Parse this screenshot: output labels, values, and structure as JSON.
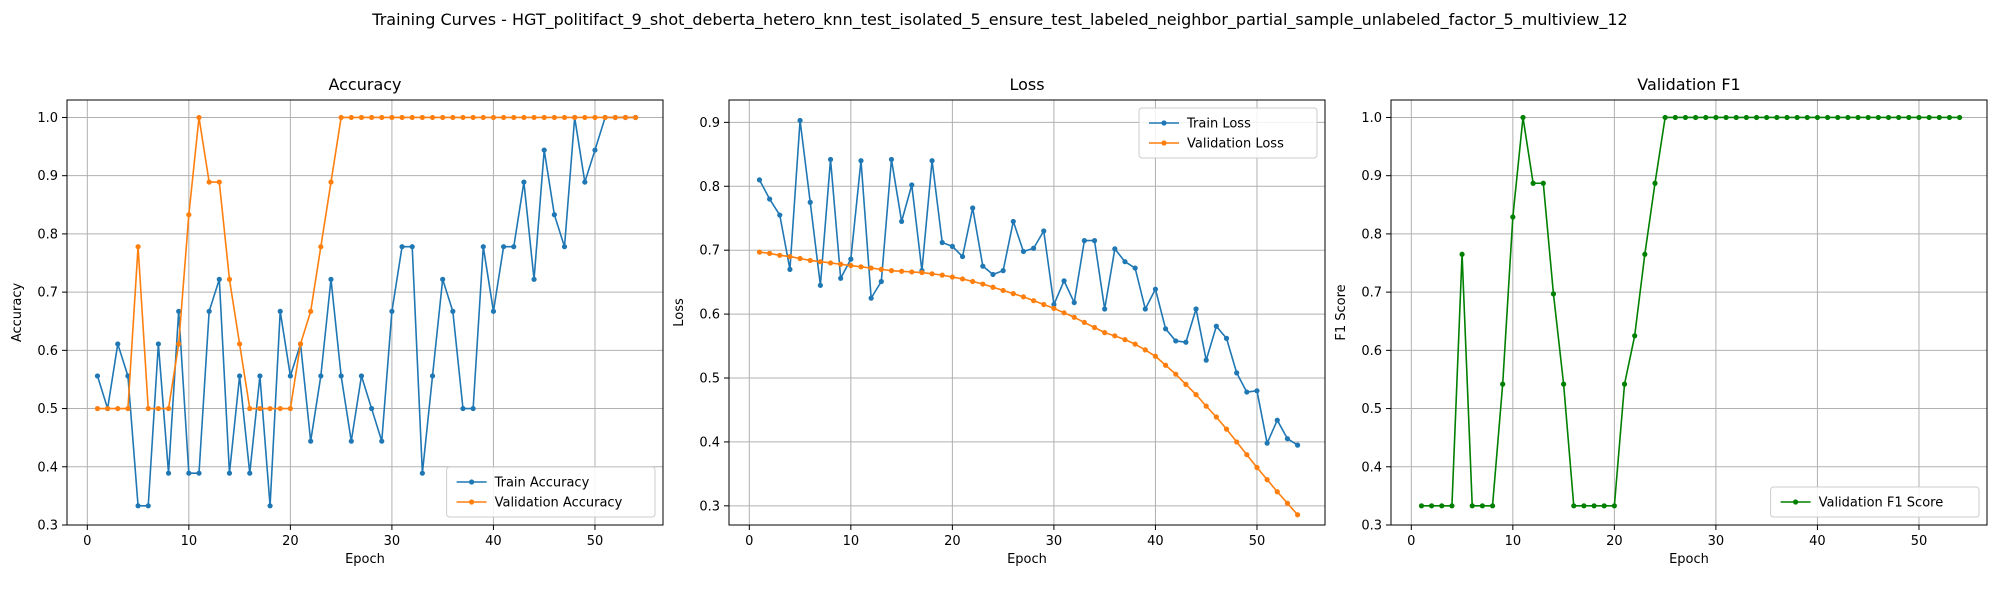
{
  "figure": {
    "suptitle": "Training Curves - HGT_politifact_9_shot_deberta_hetero_knn_test_isolated_5_ensure_test_labeled_neighbor_partial_sample_unlabeled_factor_5_multiview_12"
  },
  "chart_data": [
    {
      "type": "line",
      "title": "Accuracy",
      "xlabel": "Epoch",
      "ylabel": "Accuracy",
      "xlim": [
        -2,
        56.7
      ],
      "ylim": [
        0.3,
        1.03
      ],
      "xticks": [
        0,
        10,
        20,
        30,
        40,
        50
      ],
      "yticks": [
        0.3,
        0.4,
        0.5,
        0.6,
        0.7,
        0.8,
        0.9,
        1.0
      ],
      "grid": true,
      "legend_position": "lower-right",
      "x": [
        1,
        2,
        3,
        4,
        5,
        6,
        7,
        8,
        9,
        10,
        11,
        12,
        13,
        14,
        15,
        16,
        17,
        18,
        19,
        20,
        21,
        22,
        23,
        24,
        25,
        26,
        27,
        28,
        29,
        30,
        31,
        32,
        33,
        34,
        35,
        36,
        37,
        38,
        39,
        40,
        41,
        42,
        43,
        44,
        45,
        46,
        47,
        48,
        49,
        50,
        51,
        52,
        53,
        54
      ],
      "series": [
        {
          "name": "Train Accuracy",
          "color": "#1f77b4",
          "values": [
            0.556,
            0.5,
            0.611,
            0.556,
            0.333,
            0.333,
            0.611,
            0.389,
            0.667,
            0.389,
            0.389,
            0.667,
            0.722,
            0.389,
            0.556,
            0.389,
            0.556,
            0.333,
            0.667,
            0.556,
            0.611,
            0.444,
            0.556,
            0.722,
            0.556,
            0.444,
            0.556,
            0.5,
            0.444,
            0.667,
            0.778,
            0.778,
            0.389,
            0.556,
            0.722,
            0.667,
            0.5,
            0.5,
            0.778,
            0.667,
            0.778,
            0.778,
            0.889,
            0.722,
            0.944,
            0.833,
            0.778,
            1.0,
            0.889,
            0.944,
            1.0,
            1.0,
            1.0,
            1.0
          ]
        },
        {
          "name": "Validation Accuracy",
          "color": "#ff7f0e",
          "values": [
            0.5,
            0.5,
            0.5,
            0.5,
            0.778,
            0.5,
            0.5,
            0.5,
            0.611,
            0.833,
            1.0,
            0.889,
            0.889,
            0.722,
            0.611,
            0.5,
            0.5,
            0.5,
            0.5,
            0.5,
            0.611,
            0.667,
            0.778,
            0.889,
            1.0,
            1.0,
            1.0,
            1.0,
            1.0,
            1.0,
            1.0,
            1.0,
            1.0,
            1.0,
            1.0,
            1.0,
            1.0,
            1.0,
            1.0,
            1.0,
            1.0,
            1.0,
            1.0,
            1.0,
            1.0,
            1.0,
            1.0,
            1.0,
            1.0,
            1.0,
            1.0,
            1.0,
            1.0,
            1.0
          ]
        }
      ]
    },
    {
      "type": "line",
      "title": "Loss",
      "xlabel": "Epoch",
      "ylabel": "Loss",
      "xlim": [
        -2,
        56.7
      ],
      "ylim": [
        0.27,
        0.935
      ],
      "xticks": [
        0,
        10,
        20,
        30,
        40,
        50
      ],
      "yticks": [
        0.3,
        0.4,
        0.5,
        0.6,
        0.7,
        0.8,
        0.9
      ],
      "grid": true,
      "legend_position": "upper-right",
      "x": [
        1,
        2,
        3,
        4,
        5,
        6,
        7,
        8,
        9,
        10,
        11,
        12,
        13,
        14,
        15,
        16,
        17,
        18,
        19,
        20,
        21,
        22,
        23,
        24,
        25,
        26,
        27,
        28,
        29,
        30,
        31,
        32,
        33,
        34,
        35,
        36,
        37,
        38,
        39,
        40,
        41,
        42,
        43,
        44,
        45,
        46,
        47,
        48,
        49,
        50,
        51,
        52,
        53,
        54
      ],
      "series": [
        {
          "name": "Train Loss",
          "color": "#1f77b4",
          "values": [
            0.81,
            0.78,
            0.755,
            0.67,
            0.903,
            0.775,
            0.645,
            0.842,
            0.656,
            0.686,
            0.84,
            0.625,
            0.651,
            0.842,
            0.745,
            0.802,
            0.668,
            0.84,
            0.712,
            0.706,
            0.69,
            0.766,
            0.675,
            0.662,
            0.668,
            0.745,
            0.698,
            0.703,
            0.73,
            0.615,
            0.652,
            0.618,
            0.715,
            0.715,
            0.608,
            0.702,
            0.682,
            0.672,
            0.608,
            0.639,
            0.577,
            0.558,
            0.556,
            0.608,
            0.528,
            0.581,
            0.562,
            0.508,
            0.478,
            0.48,
            0.398,
            0.434,
            0.405,
            0.395
          ]
        },
        {
          "name": "Validation Loss",
          "color": "#ff7f0e",
          "values": [
            0.697,
            0.695,
            0.692,
            0.69,
            0.687,
            0.684,
            0.682,
            0.68,
            0.678,
            0.676,
            0.674,
            0.672,
            0.67,
            0.668,
            0.667,
            0.666,
            0.665,
            0.663,
            0.661,
            0.658,
            0.655,
            0.651,
            0.647,
            0.642,
            0.637,
            0.632,
            0.627,
            0.621,
            0.615,
            0.609,
            0.602,
            0.595,
            0.587,
            0.579,
            0.571,
            0.566,
            0.56,
            0.553,
            0.544,
            0.534,
            0.52,
            0.506,
            0.49,
            0.474,
            0.456,
            0.439,
            0.42,
            0.4,
            0.38,
            0.36,
            0.341,
            0.322,
            0.304,
            0.286
          ]
        }
      ]
    },
    {
      "type": "line",
      "title": "Validation F1",
      "xlabel": "Epoch",
      "ylabel": "F1 Score",
      "xlim": [
        -2,
        56.7
      ],
      "ylim": [
        0.3,
        1.03
      ],
      "xticks": [
        0,
        10,
        20,
        30,
        40,
        50
      ],
      "yticks": [
        0.3,
        0.4,
        0.5,
        0.6,
        0.7,
        0.8,
        0.9,
        1.0
      ],
      "grid": true,
      "legend_position": "lower-right",
      "x": [
        1,
        2,
        3,
        4,
        5,
        6,
        7,
        8,
        9,
        10,
        11,
        12,
        13,
        14,
        15,
        16,
        17,
        18,
        19,
        20,
        21,
        22,
        23,
        24,
        25,
        26,
        27,
        28,
        29,
        30,
        31,
        32,
        33,
        34,
        35,
        36,
        37,
        38,
        39,
        40,
        41,
        42,
        43,
        44,
        45,
        46,
        47,
        48,
        49,
        50,
        51,
        52,
        53,
        54
      ],
      "series": [
        {
          "name": "Validation F1 Score",
          "color": "#008000",
          "values": [
            0.333,
            0.333,
            0.333,
            0.333,
            0.765,
            0.333,
            0.333,
            0.333,
            0.542,
            0.829,
            1.0,
            0.887,
            0.887,
            0.697,
            0.542,
            0.333,
            0.333,
            0.333,
            0.333,
            0.333,
            0.542,
            0.625,
            0.765,
            0.887,
            1.0,
            1.0,
            1.0,
            1.0,
            1.0,
            1.0,
            1.0,
            1.0,
            1.0,
            1.0,
            1.0,
            1.0,
            1.0,
            1.0,
            1.0,
            1.0,
            1.0,
            1.0,
            1.0,
            1.0,
            1.0,
            1.0,
            1.0,
            1.0,
            1.0,
            1.0,
            1.0,
            1.0,
            1.0,
            1.0
          ]
        }
      ]
    }
  ]
}
